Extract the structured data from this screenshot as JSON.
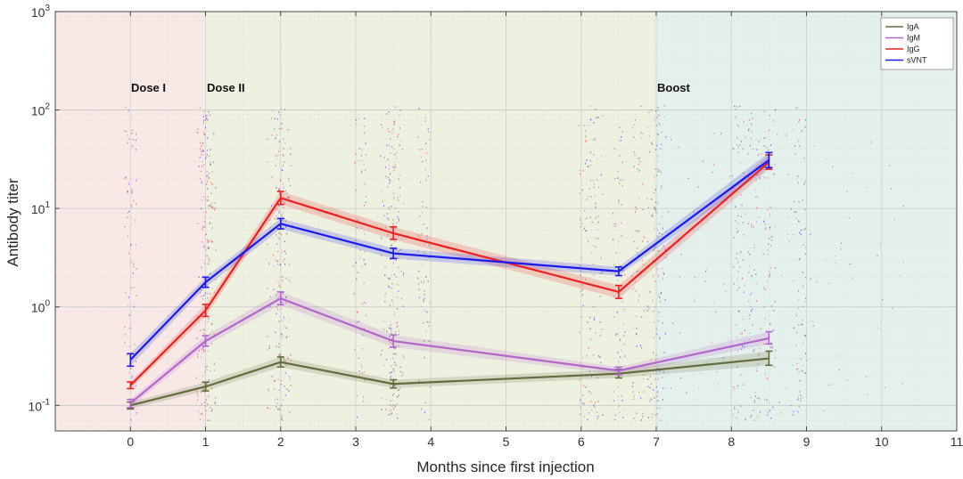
{
  "chart_data": {
    "type": "line",
    "title": "",
    "xlabel": "Months since first injection",
    "ylabel": "Antibody titer",
    "xlim": [
      -1,
      11
    ],
    "ylim": [
      0.055,
      1000
    ],
    "yscale": "log",
    "grid": true,
    "x_ticks": [
      "0",
      "1",
      "2",
      "3",
      "4",
      "5",
      "6",
      "7",
      "8",
      "9",
      "10",
      "11"
    ],
    "x_tick_values": [
      0,
      1,
      2,
      3,
      4,
      5,
      6,
      7,
      8,
      9,
      10,
      11
    ],
    "y_tick_values": [
      0.1,
      1,
      10,
      100,
      1000
    ],
    "y_tick_labels": [
      {
        "base": "10",
        "exp": "-1"
      },
      {
        "base": "10",
        "exp": "0"
      },
      {
        "base": "10",
        "exp": "1"
      },
      {
        "base": "10",
        "exp": "2"
      },
      {
        "base": "10",
        "exp": "3"
      }
    ],
    "phases": [
      {
        "label": "Dose I",
        "start": -1,
        "end": 1,
        "color": "#f8e9e6"
      },
      {
        "label": "Dose II",
        "start": 1,
        "end": 7,
        "color": "#eef0e0"
      },
      {
        "label": "Boost",
        "start": 7,
        "end": 11,
        "color": "#e3f0ec"
      }
    ],
    "legend_position": "top-right",
    "series": [
      {
        "name": "IgA",
        "color": "#646b3c",
        "x": [
          0,
          1,
          2,
          3.5,
          6.5,
          8.5
        ],
        "values": [
          0.1,
          0.155,
          0.275,
          0.165,
          0.21,
          0.3
        ],
        "err_low": [
          0.092,
          0.14,
          0.245,
          0.15,
          0.19,
          0.255
        ],
        "err_high": [
          0.108,
          0.172,
          0.31,
          0.182,
          0.232,
          0.355
        ]
      },
      {
        "name": "IgM",
        "color": "#b266cc",
        "x": [
          0,
          1,
          2,
          3.5,
          6.5,
          8.5
        ],
        "values": [
          0.105,
          0.45,
          1.22,
          0.45,
          0.225,
          0.48
        ],
        "err_low": [
          0.095,
          0.4,
          1.05,
          0.39,
          0.205,
          0.42
        ],
        "err_high": [
          0.115,
          0.51,
          1.42,
          0.52,
          0.245,
          0.56
        ]
      },
      {
        "name": "IgG",
        "color": "#ee2020",
        "x": [
          0,
          1,
          2,
          3.5,
          6.5,
          8.5
        ],
        "values": [
          0.16,
          0.92,
          12.8,
          5.6,
          1.42,
          29.5
        ],
        "err_low": [
          0.148,
          0.8,
          11.0,
          4.85,
          1.22,
          25.0
        ],
        "err_high": [
          0.173,
          1.06,
          14.9,
          6.5,
          1.65,
          35.0
        ]
      },
      {
        "name": "sVNT",
        "color": "#1a1af0",
        "x": [
          0,
          1,
          2,
          3.5,
          6.5,
          8.5
        ],
        "values": [
          0.29,
          1.78,
          7.0,
          3.5,
          2.3,
          31.0
        ],
        "err_low": [
          0.25,
          1.58,
          6.2,
          3.1,
          2.08,
          26.0
        ],
        "err_high": [
          0.335,
          2.0,
          7.9,
          3.95,
          2.55,
          37.0
        ]
      }
    ]
  }
}
